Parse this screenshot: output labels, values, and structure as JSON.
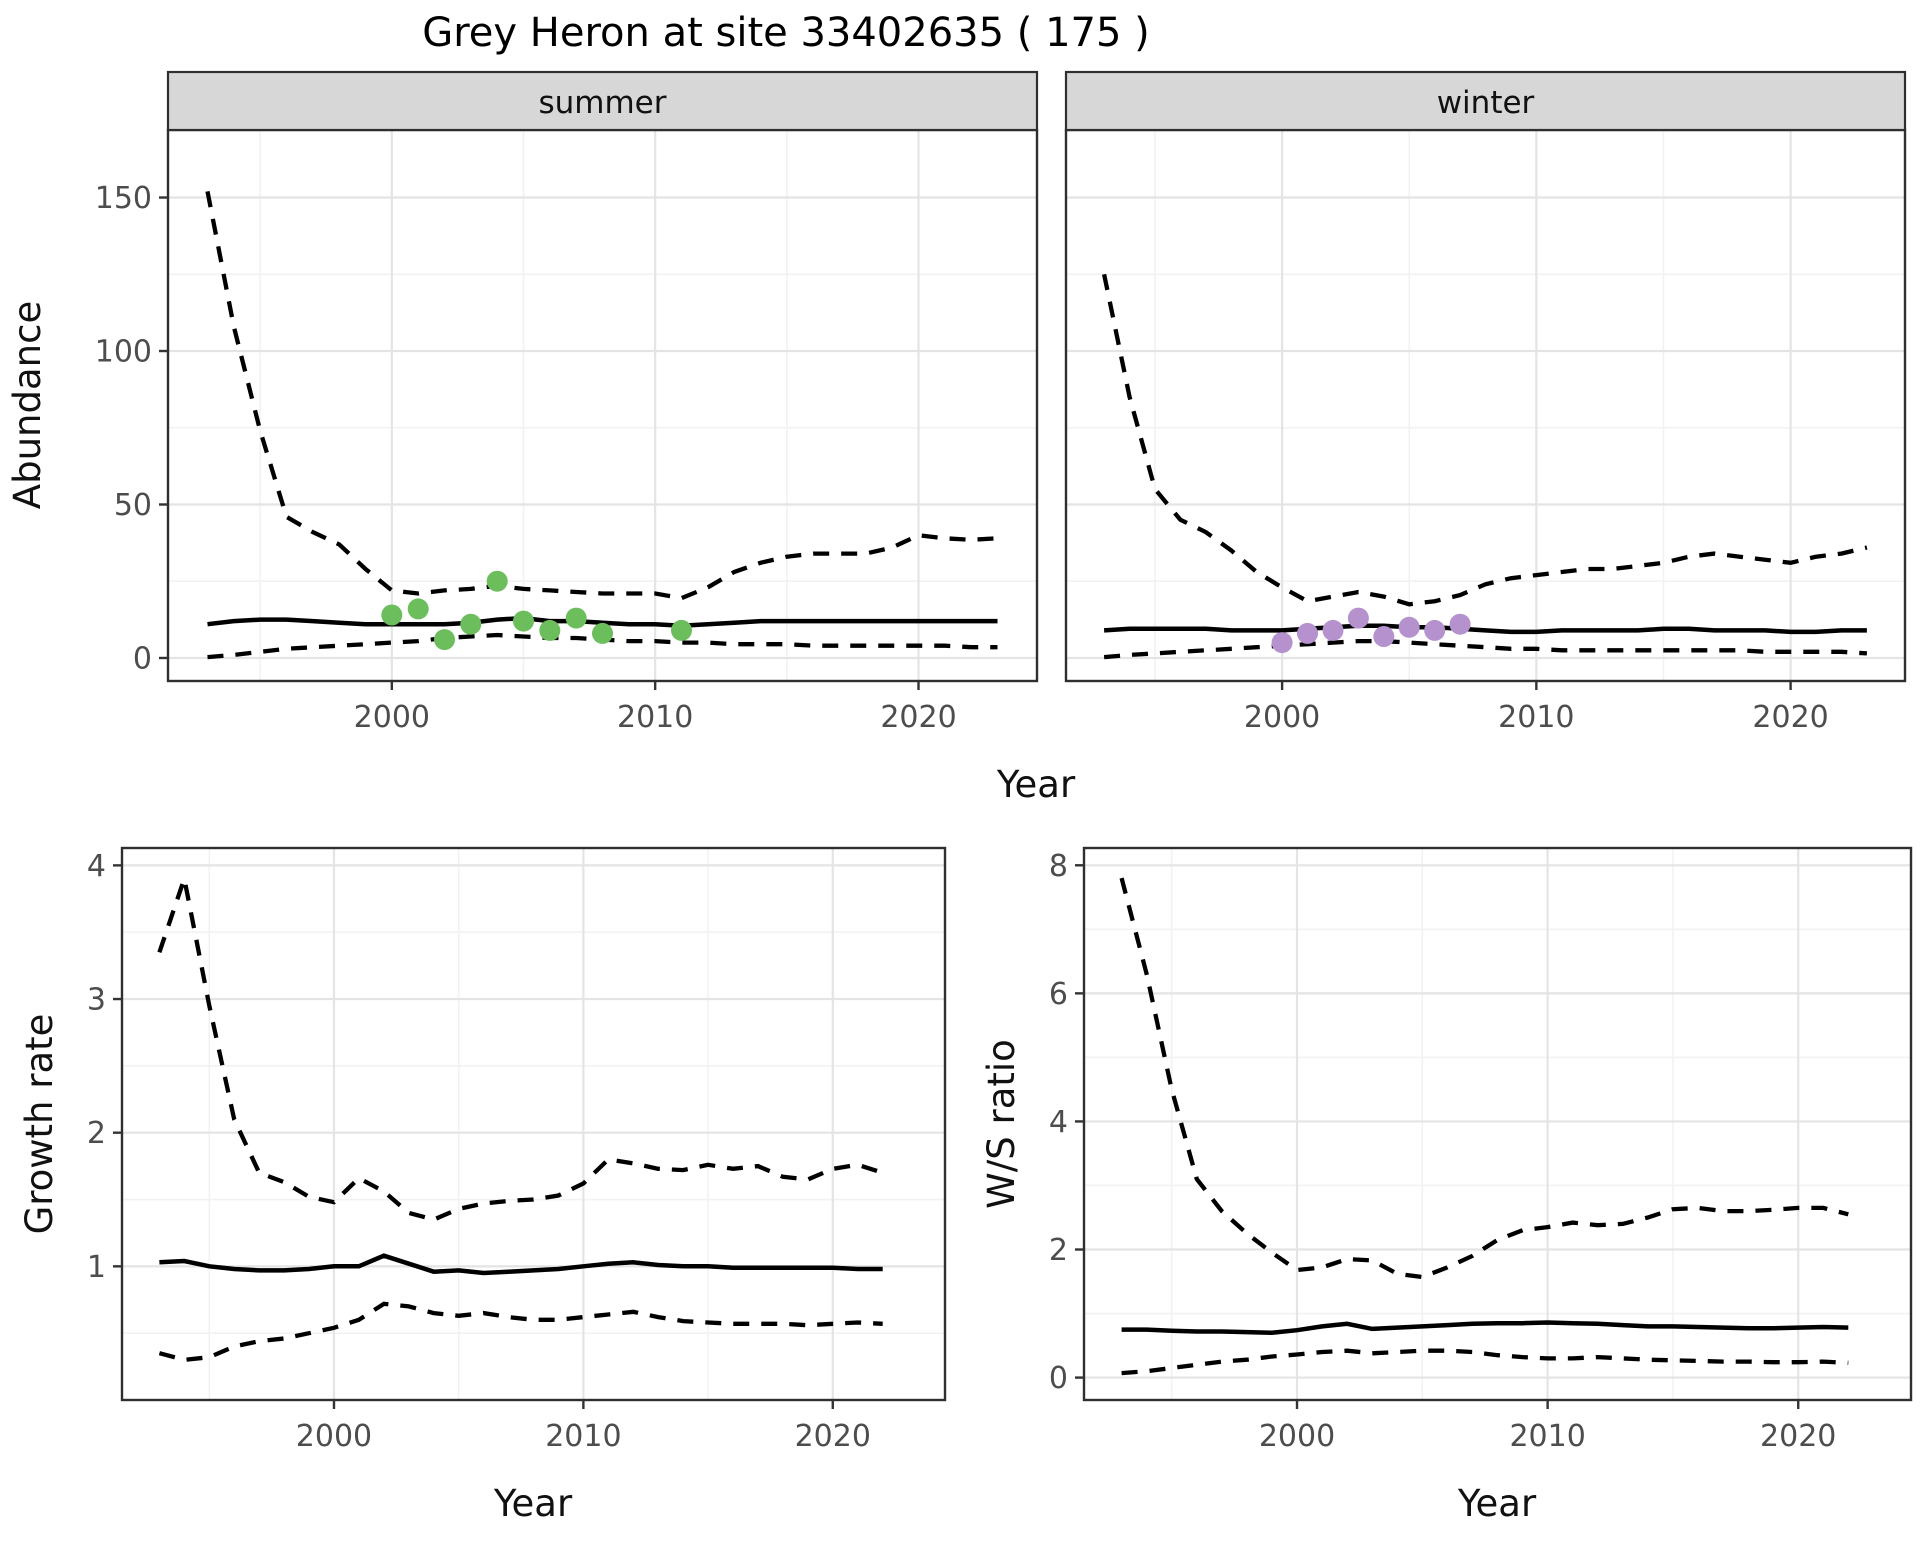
{
  "title": "Grey Heron at site 33402635 ( 175 )",
  "axis_labels": {
    "x": "Year",
    "y_abundance": "Abundance",
    "y_growth": "Growth rate",
    "y_ws": "W/S ratio"
  },
  "facet_labels": {
    "summer": "summer",
    "winter": "winter"
  },
  "colors": {
    "summer_point": "#6CBE5C",
    "winter_point": "#B591CE",
    "line": "#000000",
    "strip_background": "#D7D7D7",
    "panel_border": "#2F2F2F",
    "grid_major": "#E4E4E4",
    "grid_minor": "#F2F2F2",
    "tick_mark": "#333333",
    "tick_label": "#4D4D4D",
    "text": "#111111",
    "panel_background": "#FFFFFF"
  },
  "chart_data": [
    {
      "id": "abundance",
      "type": "line",
      "title": "Grey Heron at site 33402635 ( 175 )",
      "xlabel": "Year",
      "ylabel": "Abundance",
      "xticks": [
        2000,
        2010,
        2020
      ],
      "yticks": [
        0,
        50,
        100,
        150
      ],
      "xlim": [
        1991.5,
        2024.5
      ],
      "ylim": [
        -7.5,
        172
      ],
      "grid": true,
      "line_styles": {
        "upper": "dashed",
        "median": "solid",
        "lower": "dashed"
      },
      "x": [
        1993,
        1994,
        1995,
        1996,
        1997,
        1998,
        1999,
        2000,
        2001,
        2002,
        2003,
        2004,
        2005,
        2006,
        2007,
        2008,
        2009,
        2010,
        2011,
        2012,
        2013,
        2014,
        2015,
        2016,
        2017,
        2018,
        2019,
        2020,
        2021,
        2022,
        2023
      ],
      "facets": [
        {
          "label": "summer",
          "point_color_key": "summer_point",
          "upper": [
            152,
            108,
            74,
            46,
            41,
            37,
            29,
            22,
            21,
            22,
            22.5,
            23.5,
            22.5,
            22,
            21.5,
            21,
            21,
            21,
            19.5,
            23,
            28,
            31,
            33,
            34,
            34,
            34,
            36,
            40,
            39,
            38.5,
            39
          ],
          "median": [
            11,
            12,
            12.5,
            12.5,
            12,
            11.5,
            11,
            11,
            11,
            11,
            11.5,
            12.5,
            13,
            12,
            12,
            11.5,
            11,
            11,
            10.5,
            11,
            11.5,
            12,
            12,
            12,
            12,
            12,
            12,
            12,
            12,
            12,
            12
          ],
          "lower": [
            0.3,
            1,
            2,
            3,
            3.5,
            4,
            4.5,
            5,
            5.5,
            6.5,
            7,
            7.5,
            7,
            6.5,
            6.5,
            6,
            5.5,
            5.5,
            5,
            5,
            4.5,
            4.5,
            4.5,
            4,
            4,
            4,
            4,
            4,
            4,
            3.5,
            3.5
          ],
          "points": {
            "x": [
              2000,
              2001,
              2002,
              2003,
              2004,
              2005,
              2006,
              2007,
              2008,
              2011
            ],
            "y": [
              14,
              16,
              6,
              11,
              25,
              12,
              9,
              13,
              8,
              9
            ]
          }
        },
        {
          "label": "winter",
          "point_color_key": "winter_point",
          "upper": [
            125,
            85,
            55,
            45,
            41,
            35,
            28,
            23,
            18.5,
            20,
            21.5,
            20,
            17.5,
            18.5,
            20.5,
            24,
            26,
            27,
            28,
            29,
            29,
            30,
            31,
            33,
            34,
            33,
            32,
            31,
            33,
            34,
            36
          ],
          "median": [
            9,
            9.5,
            9.5,
            9.5,
            9.5,
            9,
            9,
            9,
            9.5,
            10,
            10.5,
            10.5,
            10,
            10,
            9.5,
            9,
            8.5,
            8.5,
            9,
            9,
            9,
            9,
            9.5,
            9.5,
            9,
            9,
            9,
            8.5,
            8.5,
            9,
            9
          ],
          "lower": [
            0.3,
            1,
            1.5,
            2,
            2.5,
            3,
            3.5,
            4,
            4.5,
            5,
            5.5,
            5.5,
            5,
            4.5,
            4,
            3.5,
            3,
            3,
            2.5,
            2.5,
            2.5,
            2.5,
            2.5,
            2.5,
            2.5,
            2.5,
            2,
            2,
            2,
            2,
            1.5
          ],
          "points": {
            "x": [
              2000,
              2001,
              2002,
              2003,
              2004,
              2005,
              2006,
              2007
            ],
            "y": [
              5,
              8,
              9,
              13,
              7,
              10,
              9,
              11
            ]
          }
        }
      ]
    },
    {
      "id": "growth_rate",
      "type": "line",
      "xlabel": "Year",
      "ylabel": "Growth rate",
      "xticks": [
        2000,
        2010,
        2020
      ],
      "yticks": [
        1,
        2,
        3,
        4
      ],
      "xlim": [
        1991.5,
        2024.5
      ],
      "ylim": [
        0.0,
        4.13
      ],
      "grid": true,
      "line_styles": {
        "upper": "dashed",
        "median": "solid",
        "lower": "dashed"
      },
      "x": [
        1993,
        1994,
        1995,
        1996,
        1997,
        1998,
        1999,
        2000,
        2001,
        2002,
        2003,
        2004,
        2005,
        2006,
        2007,
        2008,
        2009,
        2010,
        2011,
        2012,
        2013,
        2014,
        2015,
        2016,
        2017,
        2018,
        2019,
        2020,
        2021,
        2022
      ],
      "upper": [
        3.35,
        3.9,
        2.95,
        2.1,
        1.7,
        1.63,
        1.52,
        1.48,
        1.66,
        1.56,
        1.4,
        1.35,
        1.43,
        1.47,
        1.49,
        1.5,
        1.53,
        1.62,
        1.8,
        1.77,
        1.73,
        1.72,
        1.76,
        1.73,
        1.75,
        1.67,
        1.65,
        1.73,
        1.76,
        1.7
      ],
      "median": [
        1.03,
        1.04,
        1.0,
        0.98,
        0.97,
        0.97,
        0.98,
        1.0,
        1.0,
        1.08,
        1.02,
        0.96,
        0.97,
        0.95,
        0.96,
        0.97,
        0.98,
        1.0,
        1.02,
        1.03,
        1.01,
        1.0,
        1.0,
        0.99,
        0.99,
        0.99,
        0.99,
        0.99,
        0.98,
        0.98
      ],
      "lower": [
        0.35,
        0.3,
        0.32,
        0.4,
        0.44,
        0.46,
        0.5,
        0.54,
        0.6,
        0.72,
        0.7,
        0.65,
        0.63,
        0.65,
        0.62,
        0.6,
        0.6,
        0.62,
        0.64,
        0.66,
        0.62,
        0.59,
        0.58,
        0.57,
        0.57,
        0.57,
        0.56,
        0.57,
        0.58,
        0.57
      ]
    },
    {
      "id": "ws_ratio",
      "type": "line",
      "xlabel": "Year",
      "ylabel": "W/S ratio",
      "xticks": [
        2000,
        2010,
        2020
      ],
      "yticks": [
        0,
        2,
        4,
        6,
        8
      ],
      "xlim": [
        1991.5,
        2024.5
      ],
      "ylim": [
        -0.35,
        8.27
      ],
      "grid": true,
      "line_styles": {
        "upper": "dashed",
        "median": "solid",
        "lower": "dashed"
      },
      "x": [
        1993,
        1994,
        1995,
        1996,
        1997,
        1998,
        1999,
        2000,
        2001,
        2002,
        2003,
        2004,
        2005,
        2006,
        2007,
        2008,
        2009,
        2010,
        2011,
        2012,
        2013,
        2014,
        2015,
        2016,
        2017,
        2018,
        2019,
        2020,
        2021,
        2022
      ],
      "upper": [
        7.8,
        6.3,
        4.5,
        3.1,
        2.6,
        2.25,
        1.95,
        1.68,
        1.72,
        1.85,
        1.83,
        1.62,
        1.57,
        1.72,
        1.9,
        2.15,
        2.3,
        2.35,
        2.42,
        2.38,
        2.4,
        2.5,
        2.63,
        2.65,
        2.6,
        2.6,
        2.62,
        2.65,
        2.65,
        2.55
      ],
      "median": [
        0.75,
        0.75,
        0.73,
        0.72,
        0.72,
        0.71,
        0.7,
        0.74,
        0.8,
        0.84,
        0.76,
        0.78,
        0.8,
        0.82,
        0.84,
        0.85,
        0.85,
        0.86,
        0.85,
        0.84,
        0.82,
        0.8,
        0.8,
        0.79,
        0.78,
        0.77,
        0.77,
        0.78,
        0.79,
        0.78
      ],
      "lower": [
        0.07,
        0.1,
        0.15,
        0.2,
        0.25,
        0.28,
        0.33,
        0.36,
        0.4,
        0.42,
        0.38,
        0.4,
        0.42,
        0.42,
        0.4,
        0.35,
        0.32,
        0.3,
        0.3,
        0.32,
        0.3,
        0.28,
        0.27,
        0.26,
        0.25,
        0.25,
        0.24,
        0.24,
        0.25,
        0.23
      ]
    }
  ]
}
